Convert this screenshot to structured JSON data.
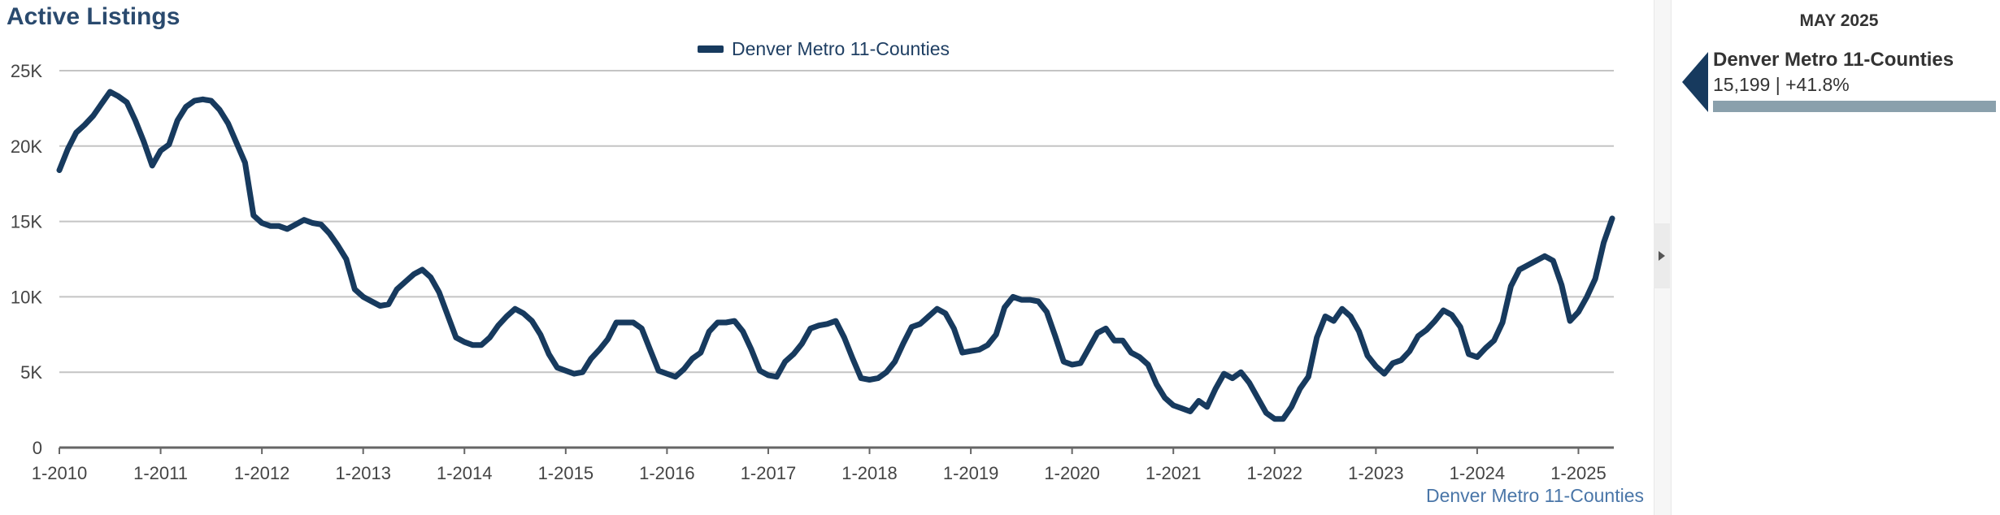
{
  "page_title": "Active Listings",
  "legend": {
    "label": "Denver Metro 11-Counties",
    "color": "#173a5e"
  },
  "footer_label": "Denver Metro 11-Counties",
  "side_panel": {
    "date": "MAY 2025",
    "name": "Denver Metro 11-Counties",
    "value_text": "15,199 | +41.8%",
    "bar_fill_fraction": 1.0,
    "bar_color": "#8aa0ac",
    "marker_color": "#173a5e"
  },
  "chart_data": {
    "type": "line",
    "title": "Active Listings",
    "xlabel": "",
    "ylabel": "",
    "ylim": [
      0,
      25000
    ],
    "y_ticks": [
      {
        "value": 0,
        "label": "0"
      },
      {
        "value": 5000,
        "label": "5K"
      },
      {
        "value": 10000,
        "label": "10K"
      },
      {
        "value": 15000,
        "label": "15K"
      },
      {
        "value": 20000,
        "label": "20K"
      },
      {
        "value": 25000,
        "label": "25K"
      }
    ],
    "x_ticks": [
      "1-2010",
      "1-2011",
      "1-2012",
      "1-2013",
      "1-2014",
      "1-2015",
      "1-2016",
      "1-2017",
      "1-2018",
      "1-2019",
      "1-2020",
      "1-2021",
      "1-2022",
      "1-2023",
      "1-2024",
      "1-2025"
    ],
    "x_start": "1-2010",
    "x_end": "5-2025",
    "grid": true,
    "legend_position": "top-center",
    "series": [
      {
        "name": "Denver Metro 11-Counties",
        "color": "#173a5e",
        "values": [
          18400,
          19800,
          20900,
          21400,
          22000,
          22800,
          23600,
          23300,
          22900,
          21700,
          20300,
          18700,
          19700,
          20100,
          21700,
          22600,
          23000,
          23100,
          23000,
          22400,
          21500,
          20200,
          18900,
          15400,
          14900,
          14700,
          14700,
          14500,
          14800,
          15100,
          14900,
          14800,
          14200,
          13400,
          12500,
          10500,
          10000,
          9700,
          9400,
          9500,
          10500,
          11000,
          11500,
          11800,
          11300,
          10300,
          8800,
          7300,
          7000,
          6800,
          6800,
          7300,
          8100,
          8700,
          9200,
          8900,
          8400,
          7500,
          6200,
          5300,
          5100,
          4900,
          5000,
          5900,
          6500,
          7200,
          8300,
          8300,
          8300,
          7900,
          6500,
          5100,
          4900,
          4700,
          5200,
          5900,
          6300,
          7700,
          8300,
          8300,
          8400,
          7700,
          6500,
          5100,
          4800,
          4700,
          5700,
          6200,
          6900,
          7900,
          8100,
          8200,
          8400,
          7300,
          5900,
          4600,
          4500,
          4600,
          5000,
          5700,
          6900,
          8000,
          8200,
          8700,
          9200,
          8900,
          7900,
          6300,
          6400,
          6500,
          6800,
          7500,
          9300,
          10000,
          9800,
          9800,
          9700,
          9000,
          7400,
          5700,
          5500,
          5600,
          6600,
          7600,
          7900,
          7100,
          7100,
          6300,
          6000,
          5500,
          4200,
          3300,
          2800,
          2600,
          2400,
          3100,
          2700,
          3900,
          4900,
          4600,
          5000,
          4300,
          3300,
          2300,
          1900,
          1900,
          2700,
          3900,
          4700,
          7300,
          8700,
          8400,
          9200,
          8700,
          7700,
          6100,
          5400,
          4900,
          5600,
          5800,
          6400,
          7400,
          7800,
          8400,
          9100,
          8800,
          8000,
          6200,
          6000,
          6600,
          7100,
          8300,
          10700,
          11800,
          12100,
          12400,
          12700,
          12400,
          10800,
          8400,
          9000,
          10000,
          11200,
          13600,
          15199
        ]
      }
    ]
  }
}
